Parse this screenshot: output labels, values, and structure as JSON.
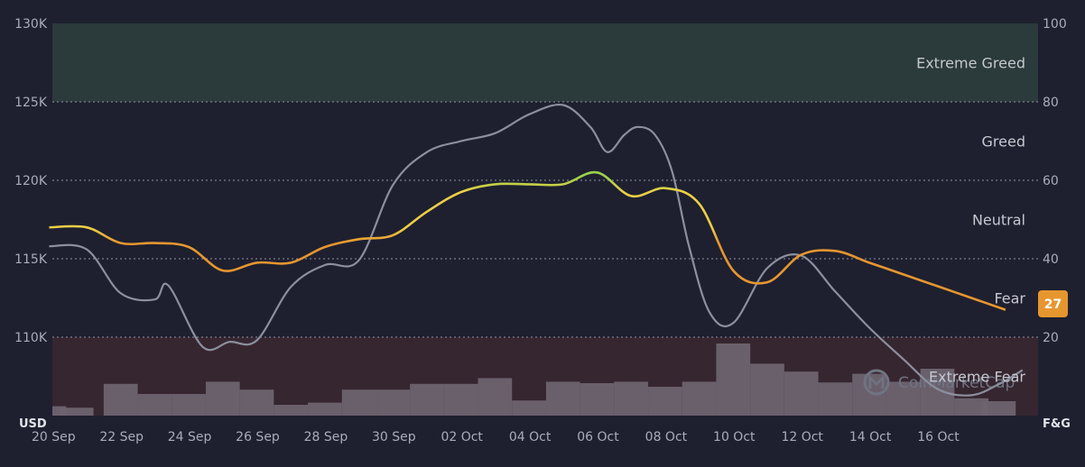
{
  "chart_data": {
    "type": "line",
    "left_axis_unit": "USD",
    "right_axis_unit": "F&G",
    "left_axis": {
      "min": 105000,
      "max": 130000,
      "ticks": [
        "130K",
        "125K",
        "120K",
        "115K",
        "110K"
      ],
      "tick_values": [
        130000,
        125000,
        120000,
        115000,
        110000
      ]
    },
    "right_axis": {
      "min": 0,
      "max": 100,
      "ticks": [
        "100",
        "80",
        "60",
        "40",
        "20"
      ],
      "tick_values": [
        100,
        80,
        60,
        40,
        20
      ]
    },
    "x_ticks": [
      "20 Sep",
      "22 Sep",
      "24 Sep",
      "26 Sep",
      "28 Sep",
      "30 Sep",
      "02 Oct",
      "04 Oct",
      "06 Oct",
      "08 Oct",
      "10 Oct",
      "12 Oct",
      "14 Oct",
      "16 Oct"
    ],
    "x_tick_days": [
      0,
      2,
      4,
      6,
      8,
      10,
      12,
      14,
      16,
      18,
      20,
      22,
      24,
      26
    ],
    "zones": [
      {
        "label": "Extreme Greed",
        "from": 80,
        "to": 100
      },
      {
        "label": "Greed",
        "from": 60,
        "to": 80
      },
      {
        "label": "Neutral",
        "from": 40,
        "to": 60
      },
      {
        "label": "Fear",
        "from": 20,
        "to": 40
      },
      {
        "label": "Extreme Fear",
        "from": 0,
        "to": 20
      }
    ],
    "current_value": "27",
    "watermark": "CoinMarketCap",
    "series": [
      {
        "kind": "fear_greed_index",
        "x": [
          -0.1,
          1,
          2,
          3,
          4,
          5,
          6,
          7,
          8,
          9,
          10,
          11,
          12,
          13,
          14,
          15,
          16,
          17,
          18,
          19,
          20,
          21,
          22,
          23,
          24,
          25,
          26,
          27,
          28
        ],
        "y": [
          48,
          48,
          44,
          44,
          43,
          37,
          39,
          39,
          43,
          45,
          46,
          52,
          57,
          59,
          59,
          59,
          62,
          56,
          58,
          54,
          37,
          34,
          41,
          42,
          39,
          36,
          33,
          30,
          27
        ],
        "colors": {
          "fear": "#e6962e",
          "neutral": "#eccf45",
          "greed": "#9bd24a"
        }
      },
      {
        "kind": "price_usd",
        "color": "#8b8f9e",
        "x": [
          -0.1,
          1,
          2,
          3,
          3.4,
          4.4,
          5.2,
          6,
          7,
          8,
          9,
          10,
          11,
          12,
          13,
          14,
          15,
          15.8,
          16.3,
          16.8,
          17.2,
          17.7,
          18.2,
          18.7,
          19.3,
          20,
          21,
          22,
          23,
          24,
          25,
          26,
          27,
          27.8,
          28.5
        ],
        "y": [
          115800,
          115600,
          112800,
          112400,
          113300,
          109400,
          109700,
          109800,
          113200,
          114600,
          114900,
          119700,
          121800,
          122500,
          123000,
          124200,
          124800,
          123400,
          121800,
          122900,
          123400,
          122900,
          120600,
          115800,
          111600,
          110900,
          114400,
          115200,
          112900,
          110600,
          108600,
          106700,
          106300,
          107000,
          107900
        ]
      }
    ],
    "volume_days": [
      -0.1,
      0.7,
      2,
      3,
      4,
      5,
      6,
      7,
      8,
      9,
      10,
      11,
      12,
      13,
      14,
      15,
      16,
      17,
      18,
      19,
      20,
      21,
      22,
      23,
      24,
      25,
      26,
      27,
      27.8
    ],
    "volume": [
      0.13,
      0.11,
      0.44,
      0.3,
      0.3,
      0.47,
      0.36,
      0.15,
      0.18,
      0.36,
      0.36,
      0.44,
      0.44,
      0.52,
      0.21,
      0.47,
      0.45,
      0.47,
      0.4,
      0.47,
      1.0,
      0.72,
      0.61,
      0.46,
      0.58,
      0.47,
      0.65,
      0.24,
      0.2
    ]
  }
}
